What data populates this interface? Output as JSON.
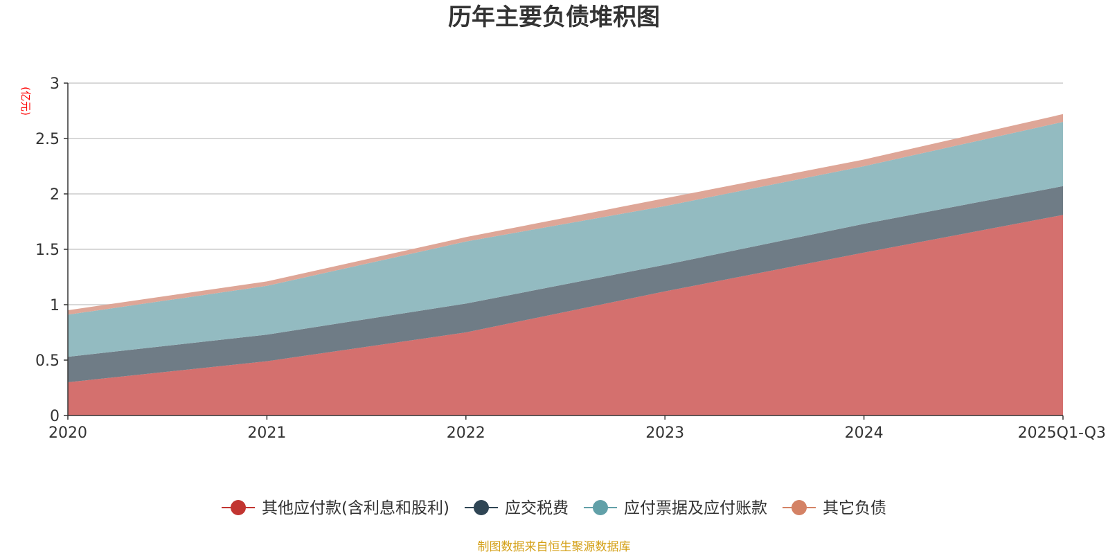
{
  "chart_data": {
    "type": "area",
    "stacked": true,
    "title": "历年主要负债堆积图",
    "unit_label": "(亿元)",
    "xlabel": "",
    "ylabel": "(亿元)",
    "categories": [
      "2020",
      "2021",
      "2022",
      "2023",
      "2024",
      "2025Q1-Q3"
    ],
    "ylim": [
      0,
      3
    ],
    "yticks": [
      "0",
      "0.5",
      "1",
      "1.5",
      "2",
      "2.5",
      "3"
    ],
    "ytick_values": [
      0,
      0.5,
      1,
      1.5,
      2,
      2.5,
      3
    ],
    "grid": true,
    "legend_position": "bottom",
    "series": [
      {
        "name": "其他应付款(含利息和股利)",
        "values": [
          0.3,
          0.49,
          0.75,
          1.12,
          1.47,
          1.81
        ],
        "color": "#c23531",
        "fill": "#d4706e"
      },
      {
        "name": "应交税费",
        "values": [
          0.23,
          0.24,
          0.26,
          0.24,
          0.26,
          0.26
        ],
        "color": "#2f4554",
        "fill": "#6f7c86"
      },
      {
        "name": "应付票据及应付账款",
        "values": [
          0.38,
          0.44,
          0.56,
          0.53,
          0.52,
          0.58
        ],
        "color": "#61a0a8",
        "fill": "#93bbc1"
      },
      {
        "name": "其它负债",
        "values": [
          0.04,
          0.04,
          0.04,
          0.07,
          0.06,
          0.07
        ],
        "color": "#d48265",
        "fill": "#dea697"
      }
    ],
    "source": "制图数据来自恒生聚源数据库"
  }
}
